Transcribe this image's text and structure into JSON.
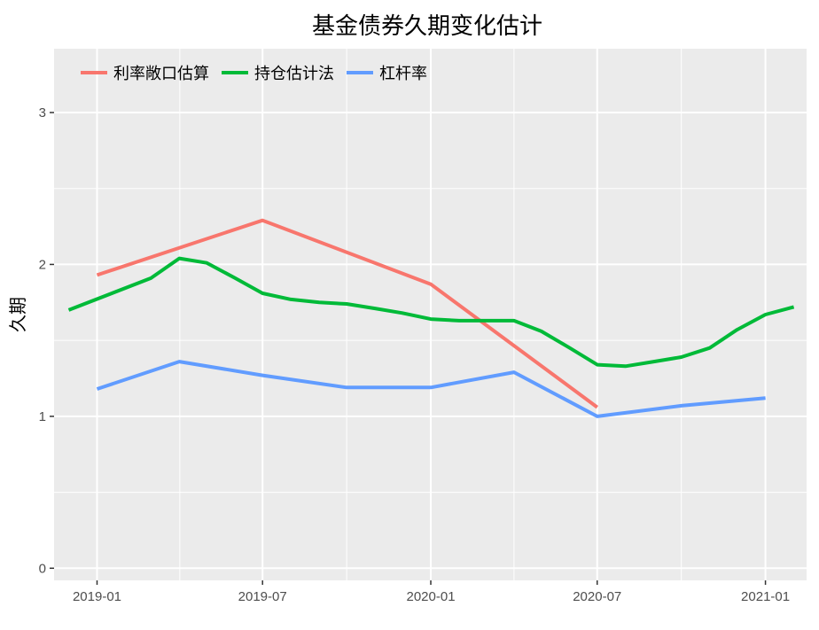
{
  "chart_data": {
    "type": "line",
    "title": "基金债券久期变化估计",
    "xlabel": "",
    "ylabel": "久期",
    "ylim": [
      -0.08,
      3.42
    ],
    "yticks": [
      0,
      1,
      2,
      3
    ],
    "x_domain": [
      "2018-11-15",
      "2021-02-15"
    ],
    "xticks": [
      {
        "date": "2019-01-01",
        "label": "2019-01"
      },
      {
        "date": "2019-07-01",
        "label": "2019-07"
      },
      {
        "date": "2020-01-01",
        "label": "2020-01"
      },
      {
        "date": "2020-07-01",
        "label": "2020-07"
      },
      {
        "date": "2021-01-01",
        "label": "2021-01"
      }
    ],
    "legend_position": "top-left",
    "grid": true,
    "series": [
      {
        "name": "利率敞口估算",
        "color": "#F8766D",
        "points": [
          {
            "x": "2019-01-01",
            "y": 1.93
          },
          {
            "x": "2019-07-01",
            "y": 2.29
          },
          {
            "x": "2020-01-01",
            "y": 1.87
          },
          {
            "x": "2020-07-01",
            "y": 1.06
          }
        ]
      },
      {
        "name": "持仓估计法",
        "color": "#00BA38",
        "points": [
          {
            "x": "2018-12-01",
            "y": 1.7
          },
          {
            "x": "2019-03-01",
            "y": 1.91
          },
          {
            "x": "2019-04-01",
            "y": 2.04
          },
          {
            "x": "2019-05-01",
            "y": 2.01
          },
          {
            "x": "2019-06-01",
            "y": 1.91
          },
          {
            "x": "2019-07-01",
            "y": 1.81
          },
          {
            "x": "2019-08-01",
            "y": 1.77
          },
          {
            "x": "2019-09-01",
            "y": 1.75
          },
          {
            "x": "2019-10-01",
            "y": 1.74
          },
          {
            "x": "2019-11-01",
            "y": 1.71
          },
          {
            "x": "2019-12-01",
            "y": 1.68
          },
          {
            "x": "2020-01-01",
            "y": 1.64
          },
          {
            "x": "2020-02-01",
            "y": 1.63
          },
          {
            "x": "2020-03-01",
            "y": 1.63
          },
          {
            "x": "2020-04-01",
            "y": 1.63
          },
          {
            "x": "2020-05-01",
            "y": 1.56
          },
          {
            "x": "2020-06-01",
            "y": 1.45
          },
          {
            "x": "2020-07-01",
            "y": 1.34
          },
          {
            "x": "2020-08-01",
            "y": 1.33
          },
          {
            "x": "2020-09-01",
            "y": 1.36
          },
          {
            "x": "2020-10-01",
            "y": 1.39
          },
          {
            "x": "2020-11-01",
            "y": 1.45
          },
          {
            "x": "2020-12-01",
            "y": 1.57
          },
          {
            "x": "2021-01-01",
            "y": 1.67
          },
          {
            "x": "2021-02-01",
            "y": 1.72
          }
        ]
      },
      {
        "name": "杠杆率",
        "color": "#619CFF",
        "points": [
          {
            "x": "2019-01-01",
            "y": 1.18
          },
          {
            "x": "2019-04-01",
            "y": 1.36
          },
          {
            "x": "2019-07-01",
            "y": 1.27
          },
          {
            "x": "2019-10-01",
            "y": 1.19
          },
          {
            "x": "2020-01-01",
            "y": 1.19
          },
          {
            "x": "2020-04-01",
            "y": 1.29
          },
          {
            "x": "2020-07-01",
            "y": 1.0
          },
          {
            "x": "2020-10-01",
            "y": 1.07
          },
          {
            "x": "2021-01-01",
            "y": 1.12
          }
        ]
      }
    ]
  }
}
